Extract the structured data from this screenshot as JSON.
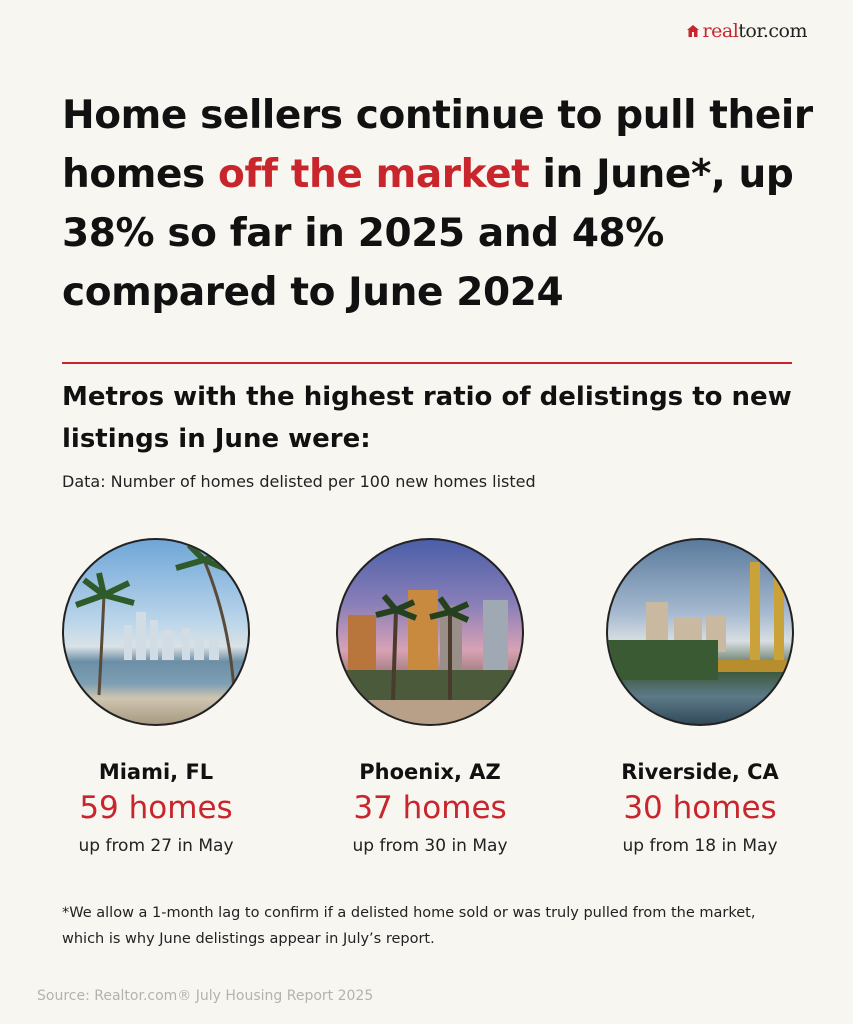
{
  "brand": {
    "logo_text_a": "real",
    "logo_text_b": "tor.com",
    "accent": "#c8262c"
  },
  "headline": {
    "before": "Home sellers continue to pull their homes ",
    "highlight": "off the market",
    "after": " in June*, up 38% so far in 2025 and 48% compared to June 2024"
  },
  "subheading": "Metros with the highest ratio of delistings to new listings in June were:",
  "data_note": "Data: Number of homes delisted per 100 new homes listed",
  "metros": [
    {
      "city": "Miami, FL",
      "count": "59 homes",
      "change": "up from 27 in May",
      "photo": "miami-skyline-palms"
    },
    {
      "city": "Phoenix, AZ",
      "count": "37 homes",
      "change": "up from 30 in May",
      "photo": "phoenix-skyline-palms"
    },
    {
      "city": "Riverside, CA",
      "count": "30 homes",
      "change": "up from 18 in May",
      "photo": "riverside-bridge-skyline"
    }
  ],
  "footnote": "*We allow a 1-month lag to confirm if a delisted home sold or was truly pulled from the market, which is why June delistings appear in July’s report.",
  "source": "Source: Realtor.com® July Housing Report 2025"
}
